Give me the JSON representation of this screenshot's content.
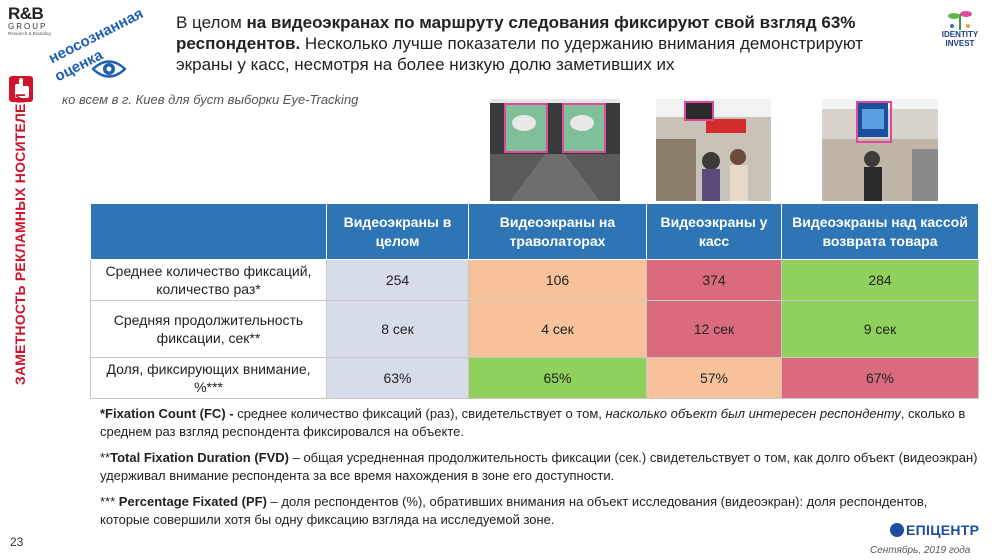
{
  "logo": {
    "mark": "R&B",
    "group": "GROUP",
    "sub": "Research & Branding"
  },
  "tag": {
    "line1": "неосознанная",
    "line2": "оценка"
  },
  "side_label": "ЗАМЕТНОСТЬ РЕКЛАМНЫХ НОСИТЕЛЕЙ",
  "title": {
    "p1": "В целом ",
    "b1": "на видеоэкранах по маршруту следования фиксируют свой взгляд 63% респондентов.",
    "p2": " Несколько лучше показатели по удержанию внимания демонстрируют экраны у касс, несмотря на более низкую долю заметивших их"
  },
  "id_logo": {
    "line1": "IDENTITY",
    "line2": "INVEST"
  },
  "subtitle": "ко всем в г. Киев для буст выборки Eye-Tracking",
  "table": {
    "headers": [
      "",
      "Видеоэкраны в целом",
      "Видеоэкраны на траволаторах",
      "Видеоэкраны у касс",
      "Видеоэкраны над кассой возврата товара"
    ],
    "rows": [
      {
        "label": "Среднее количество фиксаций, количество раз*",
        "values": [
          "254",
          "106",
          "374",
          "284"
        ]
      },
      {
        "label": "Средняя продолжительность фиксации, сек**",
        "values": [
          "8 сек",
          "4 сек",
          "12 сек",
          "9 сек"
        ]
      },
      {
        "label": "Доля, фиксирующих внимание, %***",
        "values": [
          "63%",
          "65%",
          "57%",
          "67%"
        ]
      }
    ]
  },
  "notes": {
    "n1_bold": "*Fixation Count (FC) -",
    "n1_a": " среднее количество фиксаций (раз), свидетельствует о том, ",
    "n1_italic": "насколько объект был интересен респонденту",
    "n1_b": ", сколько в среднем раз взгляд респондента фиксировался на объекте.",
    "n2_prefix": "**",
    "n2_bold": "Total Fixation Duration (FVD)",
    "n2_text": " – общая усредненная продолжительность фиксации (сек.) свидетельствует о том, как долго объект (видеоэкран) удерживал внимание респондента за все время нахождения в зоне его доступности.",
    "n3_prefix": "*** ",
    "n3_bold": "Percentage Fixated (PF)",
    "n3_text": " – доля респондентов (%), обративших внимания на объект исследования (видеоэкран): доля респондентов, которые совершили хотя бы одну фиксацию взгляда на исследуемой зоне."
  },
  "footer": {
    "page": "23",
    "brand": "ЕПІЦЕНТР",
    "date": "Сентябрь, 2019 года"
  },
  "colors": {
    "accent_blue": "#2e75b6",
    "red": "#d96b7c",
    "orange": "#f7c29a",
    "green": "#8fd15a",
    "light_blue": "#d6dcea",
    "side_red": "#d0142c"
  }
}
